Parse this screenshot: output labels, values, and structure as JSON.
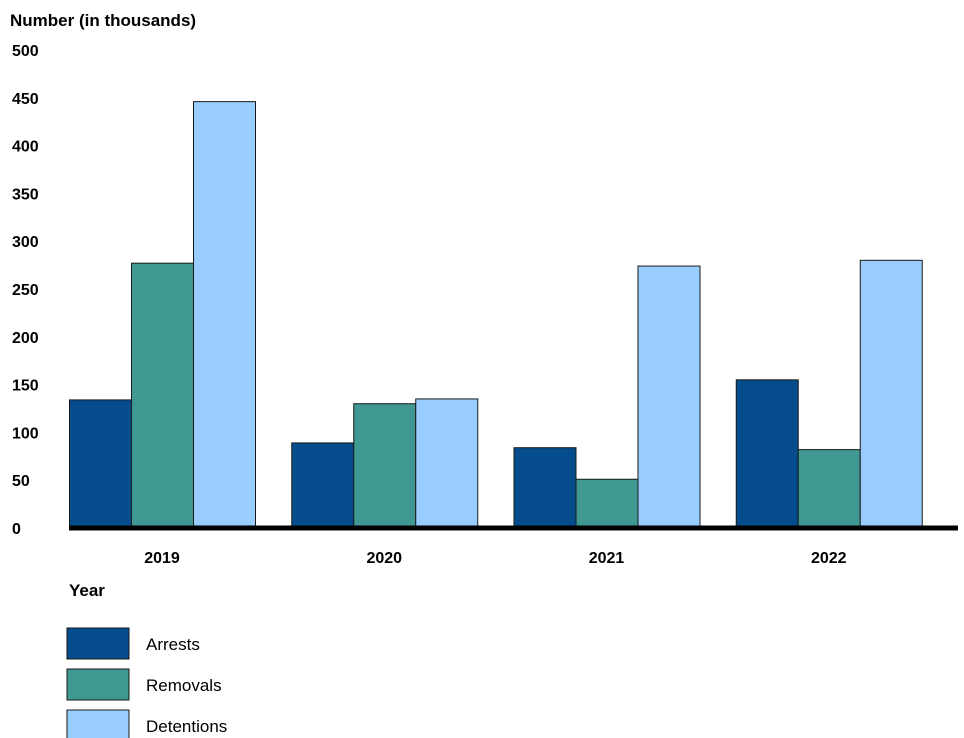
{
  "chart_data": {
    "type": "bar",
    "ylabel": "Number (in thousands)",
    "xlabel": "Year",
    "categories": [
      "2019",
      "2020",
      "2021",
      "2022"
    ],
    "ylim": [
      0,
      500
    ],
    "yticks": [
      "0",
      "50",
      "100",
      "150",
      "200",
      "250",
      "300",
      "350",
      "400",
      "450",
      "500"
    ],
    "grid": false,
    "legend_position": "bottom-left",
    "series": [
      {
        "name": "Arrests",
        "color": "#044C8C",
        "values": [
          134,
          89,
          84,
          155
        ]
      },
      {
        "name": "Removals",
        "color": "#3F9891",
        "values": [
          277,
          130,
          51,
          82
        ]
      },
      {
        "name": "Detentions",
        "color": "#9ACDFF",
        "values": [
          446,
          135,
          274,
          280
        ]
      }
    ]
  }
}
